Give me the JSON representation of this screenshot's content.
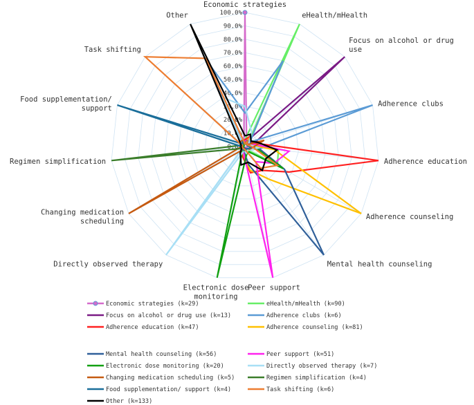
{
  "chart_data": {
    "type": "radar",
    "title": "",
    "axes": [
      "Economic strategies",
      "eHealth/mHealth",
      "Focus on alcohol or drug use",
      "Adherence clubs",
      "Adherence education",
      "Adherence counseling",
      "Mental health counseling",
      "Peer support",
      "Electronic dose monitoring",
      "Directly observed therapy",
      "Changing medication scheduling",
      "Regimen simplification",
      "Food supplementation/ support",
      "Task shifting",
      "Other"
    ],
    "axis_label_lines": [
      [
        "Economic strategies"
      ],
      [
        "eHealth/mHealth"
      ],
      [
        "Focus on alcohol or drug",
        "use"
      ],
      [
        "Adherence clubs"
      ],
      [
        "Adherence education"
      ],
      [
        "Adherence counseling"
      ],
      [
        "Mental health counseling"
      ],
      [
        "Peer support"
      ],
      [
        "Electronic dose",
        "monitoring"
      ],
      [
        "Directly observed therapy"
      ],
      [
        "Changing medication",
        "scheduling"
      ],
      [
        "Regimen simplification"
      ],
      [
        "Food supplementation/",
        "support"
      ],
      [
        "Task shifting"
      ],
      [
        "Other"
      ]
    ],
    "ticks": [
      "0.0%",
      "10.0%",
      "20.0%",
      "30.0%",
      "40.0%",
      "50.0%",
      "60.0%",
      "70.0%",
      "80.0%",
      "90.0%",
      "100.0%"
    ],
    "rmax": 100,
    "grid": true,
    "legend_position": "bottom",
    "series": [
      {
        "name": "Economic strategies (k=29)",
        "color": "#d56bcb",
        "marker": true,
        "values": [
          100,
          3,
          2,
          2,
          2,
          1,
          1,
          2,
          1,
          1,
          1,
          1,
          1,
          1,
          2
        ]
      },
      {
        "name": "eHealth/mHealth (k=90)",
        "color": "#66ee66",
        "values": [
          5,
          100,
          3,
          5,
          25,
          28,
          3,
          6,
          5,
          2,
          1,
          2,
          2,
          1,
          3
        ]
      },
      {
        "name": "Focus on alcohol or drug use (k=13)",
        "color": "#7a1a85",
        "values": [
          4,
          5,
          100,
          7,
          5,
          4,
          3,
          2,
          1,
          1,
          1,
          1,
          1,
          1,
          2
        ]
      },
      {
        "name": "Adherence clubs (k=6)",
        "color": "#5b9bd5",
        "values": [
          25,
          70,
          5,
          100,
          12,
          5,
          2,
          5,
          2,
          2,
          1,
          1,
          1,
          2,
          70
        ]
      },
      {
        "name": "Adherence education (k=47)",
        "color": "#ff2020",
        "values": [
          5,
          8,
          5,
          8,
          100,
          38,
          22,
          20,
          8,
          4,
          2,
          2,
          3,
          3,
          5
        ]
      },
      {
        "name": "Adherence counseling (k=81)",
        "color": "#ffc000",
        "values": [
          3,
          6,
          3,
          4,
          22,
          100,
          30,
          18,
          6,
          3,
          2,
          2,
          2,
          2,
          4
        ]
      },
      {
        "name": "Mental health counseling (k=56)",
        "color": "#2f5f99",
        "values": [
          2,
          4,
          6,
          3,
          10,
          34,
          100,
          14,
          4,
          2,
          1,
          1,
          1,
          2,
          5
        ]
      },
      {
        "name": "Peer support (k=51)",
        "color": "#ff22ee",
        "values": [
          4,
          5,
          3,
          6,
          33,
          25,
          14,
          100,
          5,
          3,
          1,
          2,
          2,
          2,
          4
        ]
      },
      {
        "name": "Electronic dose monitoring (k=20)",
        "color": "#11a011",
        "values": [
          2,
          5,
          2,
          2,
          8,
          33,
          5,
          6,
          100,
          3,
          1,
          1,
          1,
          1,
          2
        ]
      },
      {
        "name": "Directly observed therapy (k=7)",
        "color": "#a8dff5",
        "values": [
          30,
          12,
          4,
          4,
          10,
          5,
          3,
          5,
          3,
          100,
          2,
          2,
          2,
          3,
          40
        ]
      },
      {
        "name": "Changing medication scheduling (k=5)",
        "color": "#c55a11",
        "values": [
          3,
          4,
          2,
          15,
          6,
          4,
          2,
          3,
          2,
          3,
          100,
          3,
          2,
          5,
          5
        ]
      },
      {
        "name": "Regimen simplification (k=4)",
        "color": "#3a7d2a",
        "values": [
          2,
          2,
          2,
          2,
          5,
          3,
          2,
          2,
          3,
          2,
          3,
          100,
          3,
          3,
          4
        ]
      },
      {
        "name": "Food supplementation/ support (k=4)",
        "color": "#1a6e9a",
        "values": [
          3,
          3,
          2,
          2,
          5,
          3,
          2,
          3,
          2,
          3,
          3,
          2,
          100,
          3,
          4
        ]
      },
      {
        "name": "Task shifting (k=6)",
        "color": "#ed7d31",
        "values": [
          2,
          4,
          2,
          3,
          6,
          28,
          20,
          3,
          2,
          2,
          2,
          2,
          2,
          100,
          72
        ]
      },
      {
        "name": "Other (k=133)",
        "color": "#000000",
        "values": [
          8,
          10,
          6,
          10,
          24,
          18,
          22,
          12,
          14,
          6,
          3,
          3,
          3,
          5,
          100
        ]
      }
    ]
  }
}
